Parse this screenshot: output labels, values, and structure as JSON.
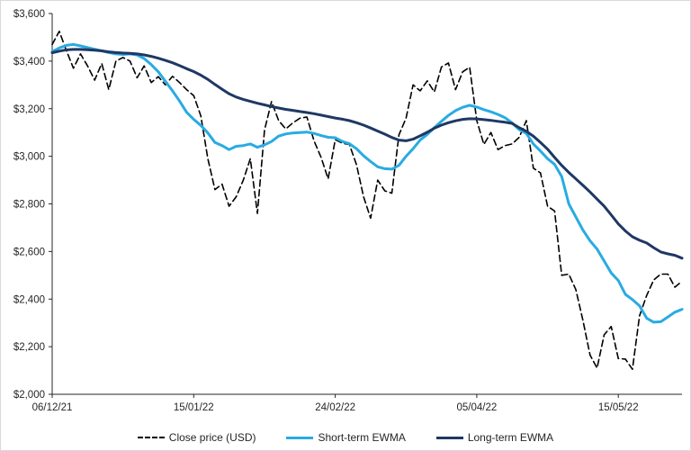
{
  "chart_data": {
    "type": "line",
    "title": "",
    "xlabel": "",
    "ylabel": "",
    "grid": false,
    "legend_position": "bottom",
    "ylim": [
      2000,
      3600
    ],
    "xlim_days": [
      0,
      178
    ],
    "y_tick_values": [
      2000,
      2200,
      2400,
      2600,
      2800,
      3000,
      3200,
      3400,
      3600
    ],
    "y_tick_labels": [
      "$2,000",
      "$2,200",
      "$2,400",
      "$2,600",
      "$2,800",
      "$3,000",
      "$3,200",
      "$3,400",
      "$3,600"
    ],
    "x_tick_days": [
      0,
      40,
      80,
      120,
      160
    ],
    "x_tick_labels": [
      "06/12/21",
      "15/01/22",
      "24/02/22",
      "05/04/22",
      "15/05/22"
    ],
    "x_days": [
      0,
      2,
      4,
      6,
      8,
      10,
      12,
      14,
      16,
      18,
      20,
      22,
      24,
      26,
      28,
      30,
      32,
      34,
      36,
      38,
      40,
      42,
      44,
      46,
      48,
      50,
      52,
      54,
      56,
      58,
      60,
      62,
      64,
      66,
      68,
      70,
      72,
      74,
      76,
      78,
      80,
      82,
      84,
      86,
      88,
      90,
      92,
      94,
      96,
      98,
      100,
      102,
      104,
      106,
      108,
      110,
      112,
      114,
      116,
      118,
      120,
      122,
      124,
      126,
      128,
      130,
      132,
      134,
      136,
      138,
      140,
      142,
      144,
      146,
      148,
      150,
      152,
      154,
      156,
      158,
      160,
      162,
      164,
      166,
      168,
      170,
      172,
      174,
      176,
      178
    ],
    "series": [
      {
        "name": "Close price (USD)",
        "style": "dashed",
        "color": "#000000",
        "width": 1.6,
        "values": [
          3470,
          3525,
          3445,
          3370,
          3430,
          3380,
          3320,
          3390,
          3280,
          3400,
          3415,
          3400,
          3330,
          3380,
          3310,
          3335,
          3300,
          3336,
          3310,
          3280,
          3255,
          3170,
          2990,
          2860,
          2883,
          2790,
          2830,
          2900,
          2990,
          2760,
          3110,
          3230,
          3150,
          3115,
          3140,
          3160,
          3165,
          3065,
          2995,
          2905,
          3070,
          3055,
          3050,
          2965,
          2830,
          2740,
          2900,
          2855,
          2845,
          3090,
          3160,
          3300,
          3275,
          3317,
          3270,
          3375,
          3392,
          3280,
          3355,
          3374,
          3150,
          3050,
          3100,
          3028,
          3045,
          3052,
          3080,
          3150,
          2950,
          2930,
          2790,
          2770,
          2500,
          2505,
          2440,
          2310,
          2165,
          2110,
          2250,
          2285,
          2150,
          2148,
          2105,
          2330,
          2415,
          2480,
          2505,
          2505,
          2450,
          2475
        ]
      },
      {
        "name": "Short-term EWMA",
        "style": "solid",
        "color": "#29ABE2",
        "width": 3,
        "values": [
          3440,
          3455,
          3466,
          3470,
          3464,
          3457,
          3450,
          3443,
          3436,
          3430,
          3428,
          3430,
          3426,
          3411,
          3385,
          3355,
          3315,
          3275,
          3232,
          3185,
          3155,
          3130,
          3098,
          3058,
          3045,
          3028,
          3042,
          3045,
          3052,
          3038,
          3048,
          3062,
          3085,
          3094,
          3098,
          3100,
          3102,
          3096,
          3087,
          3080,
          3078,
          3062,
          3053,
          3032,
          3002,
          2978,
          2956,
          2948,
          2946,
          2962,
          3000,
          3032,
          3068,
          3092,
          3120,
          3147,
          3172,
          3192,
          3206,
          3214,
          3207,
          3196,
          3187,
          3176,
          3162,
          3140,
          3112,
          3096,
          3052,
          3022,
          2990,
          2966,
          2915,
          2800,
          2745,
          2690,
          2645,
          2610,
          2560,
          2510,
          2478,
          2420,
          2398,
          2372,
          2320,
          2303,
          2305,
          2325,
          2345,
          2357
        ]
      },
      {
        "name": "Long-term EWMA",
        "style": "solid",
        "color": "#1F3864",
        "width": 3,
        "values": [
          3435,
          3442,
          3447,
          3449,
          3449,
          3448,
          3446,
          3443,
          3439,
          3436,
          3434,
          3433,
          3430,
          3426,
          3420,
          3412,
          3403,
          3393,
          3381,
          3368,
          3356,
          3341,
          3323,
          3302,
          3282,
          3263,
          3249,
          3239,
          3231,
          3223,
          3216,
          3209,
          3203,
          3197,
          3193,
          3188,
          3184,
          3179,
          3173,
          3167,
          3161,
          3156,
          3150,
          3141,
          3131,
          3119,
          3106,
          3093,
          3079,
          3068,
          3065,
          3072,
          3086,
          3101,
          3118,
          3131,
          3141,
          3149,
          3155,
          3158,
          3157,
          3154,
          3151,
          3147,
          3143,
          3138,
          3120,
          3105,
          3085,
          3058,
          3030,
          2995,
          2962,
          2932,
          2905,
          2878,
          2850,
          2820,
          2790,
          2754,
          2716,
          2686,
          2662,
          2647,
          2636,
          2616,
          2598,
          2590,
          2584,
          2572
        ]
      }
    ]
  },
  "colors": {
    "axis": "#262626",
    "tick_text": "#262626",
    "frame_border": "#d9d9d9",
    "background": "#ffffff",
    "close": "#000000",
    "short_ewma": "#29ABE2",
    "long_ewma": "#1F3864"
  }
}
